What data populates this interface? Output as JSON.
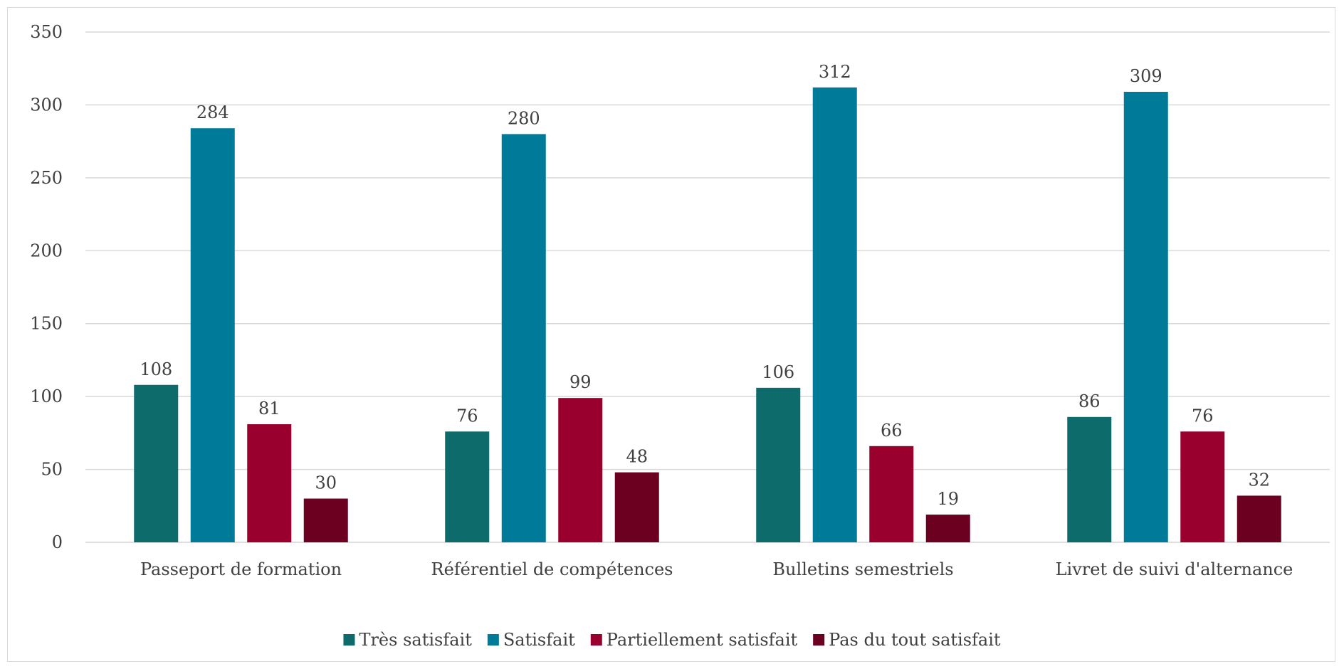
{
  "chart_data": {
    "type": "bar",
    "title": "",
    "xlabel": "",
    "ylabel": "",
    "categories": [
      "Passeport de formation",
      "Référentiel de compétences",
      "Bulletins semestriels",
      "Livret de suivi d'alternance"
    ],
    "series": [
      {
        "name": "Très satisfait",
        "color": "#0e6b6b",
        "values": [
          108,
          76,
          106,
          86
        ]
      },
      {
        "name": "Satisfait",
        "color": "#007a99",
        "values": [
          284,
          280,
          312,
          309
        ]
      },
      {
        "name": "Partiellement satisfait",
        "color": "#99002e",
        "values": [
          81,
          99,
          66,
          76
        ]
      },
      {
        "name": "Pas du tout satisfait",
        "color": "#6b0020",
        "values": [
          30,
          48,
          19,
          32
        ]
      }
    ],
    "ylim": [
      0,
      350
    ],
    "yticks": [
      "0",
      "50",
      "100",
      "150",
      "200",
      "250",
      "300",
      "350"
    ],
    "grid": true,
    "legend_position": "bottom",
    "data_labels": true
  }
}
